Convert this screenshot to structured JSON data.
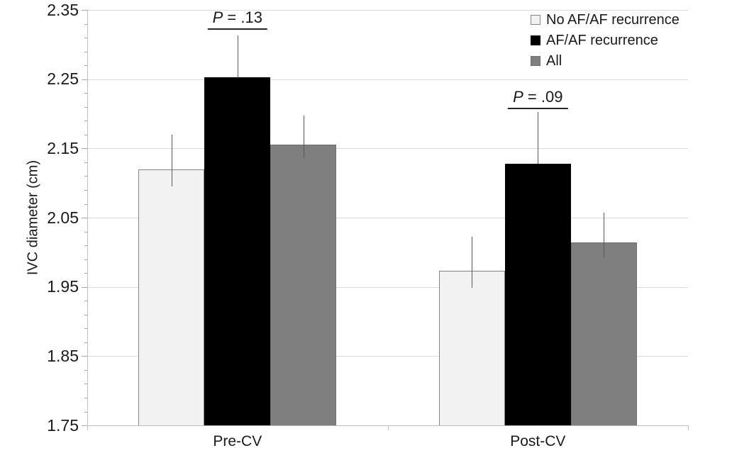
{
  "chart_data": {
    "type": "bar",
    "title": "",
    "ylabel": "IVC diameter (cm)",
    "xlabel": "",
    "categories": [
      "Pre-CV",
      "Post-CV"
    ],
    "series": [
      {
        "name": "No AF/AF recurrence",
        "fill": "#f2f2f2",
        "stroke": "#848484",
        "values": [
          2.12,
          1.973
        ],
        "errors_up": [
          0.05,
          0.049
        ]
      },
      {
        "name": "AF/AF recurrence",
        "fill": "#000000",
        "stroke": "#000000",
        "values": [
          2.253,
          2.128
        ],
        "errors_up": [
          0.06,
          0.075
        ]
      },
      {
        "name": "All",
        "fill": "#7f7f7f",
        "stroke": "#6f6f6f",
        "values": [
          2.156,
          2.014
        ],
        "errors_up": [
          0.041,
          0.043
        ]
      }
    ],
    "annotations": [
      {
        "text": "P = .13",
        "category_index": 0,
        "y": 2.322
      },
      {
        "text": "P = .09",
        "category_index": 1,
        "y": 2.208
      }
    ],
    "ylim": [
      1.75,
      2.35
    ],
    "ytick_step": 0.1,
    "yminor_step": 0.02,
    "ytick_labels": [
      "1.75",
      "1.85",
      "1.95",
      "2.05",
      "2.15",
      "2.25",
      "2.35"
    ],
    "grid": true,
    "legend_position": "top-right",
    "colors": {
      "background": "#ffffff",
      "gridline": "#d9d9d9",
      "axis": "#bfbfbf",
      "tick": "#a6a6a6",
      "error_bar": "#595959",
      "text": "#1a1a1a"
    }
  }
}
